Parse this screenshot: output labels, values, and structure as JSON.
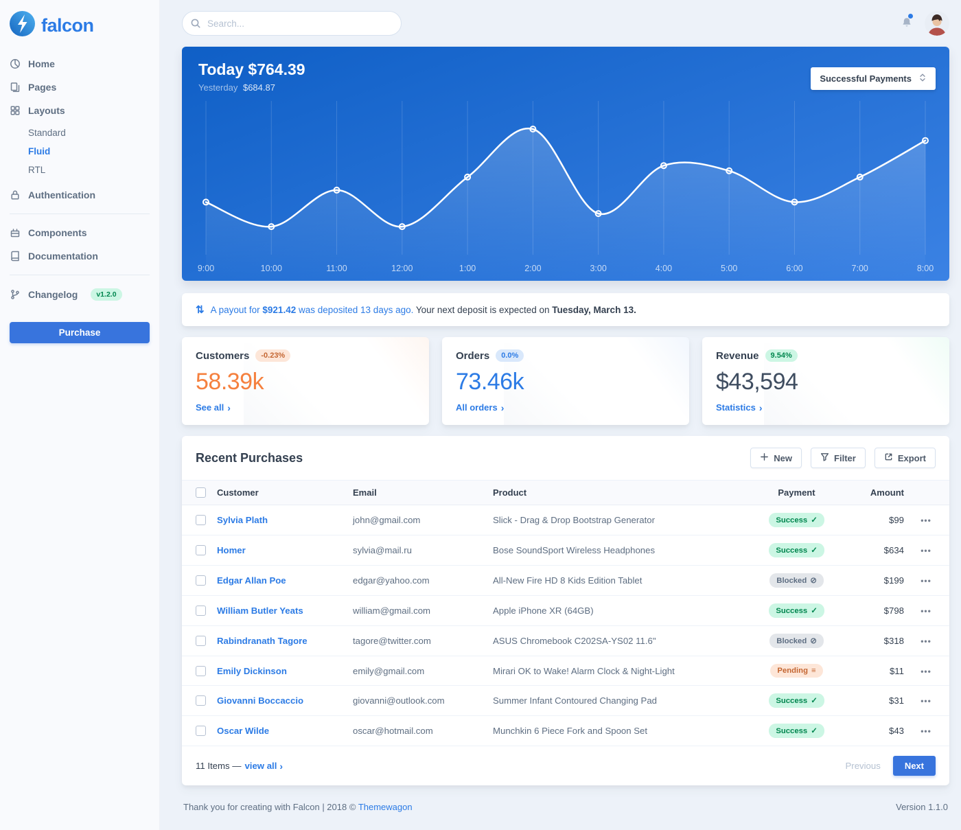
{
  "brand": {
    "name": "falcon"
  },
  "topbar": {
    "search_placeholder": "Search..."
  },
  "sidebar": {
    "items": [
      {
        "label": "Home"
      },
      {
        "label": "Pages"
      },
      {
        "label": "Layouts"
      },
      {
        "label": "Authentication"
      },
      {
        "label": "Components"
      },
      {
        "label": "Documentation"
      },
      {
        "label": "Changelog",
        "badge": "v1.2.0"
      }
    ],
    "layouts_children": [
      {
        "label": "Standard"
      },
      {
        "label": "Fluid",
        "active": true
      },
      {
        "label": "RTL"
      }
    ],
    "purchase_label": "Purchase"
  },
  "chart_controls": {
    "dropdown_label": "Successful Payments"
  },
  "chart_data": {
    "type": "line",
    "title": "Today $764.39",
    "subtitle_label": "Yesterday",
    "subtitle_value": "$684.87",
    "x": [
      "9:00",
      "10:00",
      "11:00",
      "12:00",
      "1:00",
      "2:00",
      "3:00",
      "4:00",
      "5:00",
      "6:00",
      "7:00",
      "8:00"
    ],
    "series": [
      {
        "name": "Successful Payments",
        "values": [
          85,
          38,
          108,
          38,
          133,
          225,
          63,
          155,
          145,
          85,
          133,
          203
        ]
      }
    ],
    "ylim": [
      0,
      250
    ],
    "grid": "vertical",
    "legend": "none"
  },
  "payout": {
    "icon": "⇅",
    "link_part1": "A payout for",
    "amount": "$921.42",
    "link_part2": "was deposited 13 days ago.",
    "plain_text": "Your next deposit is expected on",
    "date": "Tuesday, March 13."
  },
  "stats": [
    {
      "title": "Customers",
      "badge": "-0.23%",
      "tone": "warning",
      "value": "58.39k",
      "value_tone": "warning",
      "link": "See all"
    },
    {
      "title": "Orders",
      "badge": "0.0%",
      "tone": "info",
      "value": "73.46k",
      "value_tone": "info",
      "link": "All orders"
    },
    {
      "title": "Revenue",
      "badge": "9.54%",
      "tone": "success",
      "value": "$43,594",
      "value_tone": "dark",
      "link": "Statistics"
    }
  ],
  "table": {
    "title": "Recent Purchases",
    "buttons": {
      "new": "New",
      "filter": "Filter",
      "export": "Export"
    },
    "headers": [
      "Customer",
      "Email",
      "Product",
      "Payment",
      "Amount"
    ],
    "rows": [
      {
        "customer": "Sylvia Plath",
        "email": "john@gmail.com",
        "product": "Slick - Drag & Drop Bootstrap Generator",
        "payment": "Success",
        "status": "success",
        "status_icon": "✓",
        "amount": "$99"
      },
      {
        "customer": "Homer",
        "email": "sylvia@mail.ru",
        "product": "Bose SoundSport Wireless Headphones",
        "payment": "Success",
        "status": "success",
        "status_icon": "✓",
        "amount": "$634"
      },
      {
        "customer": "Edgar Allan Poe",
        "email": "edgar@yahoo.com",
        "product": "All-New Fire HD 8 Kids Edition Tablet",
        "payment": "Blocked",
        "status": "blocked",
        "status_icon": "⊘",
        "amount": "$199"
      },
      {
        "customer": "William Butler Yeats",
        "email": "william@gmail.com",
        "product": "Apple iPhone XR (64GB)",
        "payment": "Success",
        "status": "success",
        "status_icon": "✓",
        "amount": "$798"
      },
      {
        "customer": "Rabindranath Tagore",
        "email": "tagore@twitter.com",
        "product": "ASUS Chromebook C202SA-YS02 11.6\"",
        "payment": "Blocked",
        "status": "blocked",
        "status_icon": "⊘",
        "amount": "$318"
      },
      {
        "customer": "Emily Dickinson",
        "email": "emily@gmail.com",
        "product": "Mirari OK to Wake! Alarm Clock & Night-Light",
        "payment": "Pending",
        "status": "pending",
        "status_icon": "≡",
        "amount": "$11"
      },
      {
        "customer": "Giovanni Boccaccio",
        "email": "giovanni@outlook.com",
        "product": "Summer Infant Contoured Changing Pad",
        "payment": "Success",
        "status": "success",
        "status_icon": "✓",
        "amount": "$31"
      },
      {
        "customer": "Oscar Wilde",
        "email": "oscar@hotmail.com",
        "product": "Munchkin 6 Piece Fork and Spoon Set",
        "payment": "Success",
        "status": "success",
        "status_icon": "✓",
        "amount": "$43"
      }
    ],
    "footer": {
      "items_text": "11 Items —",
      "view_all": "view all",
      "previous": "Previous",
      "next": "Next"
    }
  },
  "page_footer": {
    "thanks": "Thank you for creating with Falcon | 2018 ©",
    "brand_link": "Themewagon",
    "version": "Version 1.1.0"
  },
  "icons": {
    "chevron_right": "›",
    "ellipsis": "•••"
  },
  "colors": {
    "primary": "#2c7be5",
    "button_blue": "#3874dd",
    "success_soft_bg": "#ccf6e4",
    "success_text": "#00864e",
    "secondary_soft_bg": "#e3e6ea",
    "secondary_text": "#5e6e82",
    "warning_soft_bg": "#fde6d8",
    "warning_text": "#c46632",
    "info_soft_bg": "#d9e8fb",
    "customers_value": "#f5803e",
    "orders_value": "#2c7be5",
    "revenue_value": "#3f4d60",
    "chart_gradient_start": "#0f5fc6",
    "chart_gradient_end": "#3b82e4"
  }
}
